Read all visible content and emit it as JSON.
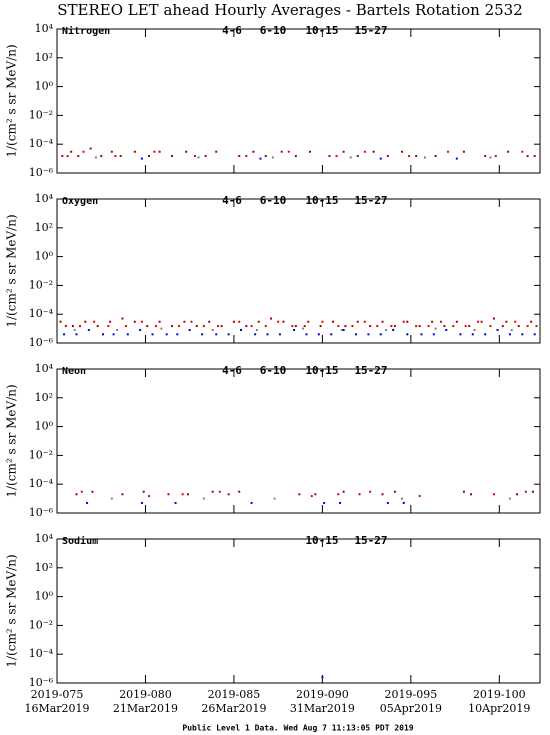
{
  "title": "STEREO LET ahead Hourly Averages - Bartels Rotation 2532",
  "footer": "Public Level 1 Data. Wed Aug  7 11:13:05 PDT 2019",
  "chart_data": [
    {
      "type": "scatter",
      "title": "Nitrogen",
      "y_label": "1/(cm² s sr MeV/n)",
      "log_y": true,
      "ylim": [
        1e-06,
        10000
      ],
      "yticks": [
        {
          "value": 10000,
          "label": "10⁴"
        },
        {
          "value": 100,
          "label": "10²"
        },
        {
          "value": 1,
          "label": "10⁰"
        },
        {
          "value": 0.01,
          "label": "10⁻²"
        },
        {
          "value": 0.0001,
          "label": "10⁻⁴"
        },
        {
          "value": 1e-06,
          "label": "10⁻⁶"
        }
      ],
      "series": [
        {
          "name": "4-6",
          "color": "#a00000",
          "x": [
            75.3,
            75.8,
            76.2,
            76.9,
            77.5,
            78.1,
            78.6,
            79.4,
            80.2,
            80.8,
            81.5,
            82.3,
            83.4,
            84.0,
            85.3,
            86.1,
            86.8,
            87.7,
            88.5,
            89.3,
            90.4,
            91.2,
            92.0,
            92.9,
            93.7,
            94.5,
            95.3,
            96.4,
            98.0,
            99.2,
            100.5,
            101.6,
            102.0
          ],
          "values": [
            1.5e-05,
            3e-05,
            1.5e-05,
            5e-05,
            1.5e-05,
            3e-05,
            1.5e-05,
            3e-05,
            1.5e-05,
            3e-05,
            1.5e-05,
            3e-05,
            1.5e-05,
            3e-05,
            1.5e-05,
            3e-05,
            1.5e-05,
            3e-05,
            1.5e-05,
            3e-05,
            1.5e-05,
            3e-05,
            1.5e-05,
            3e-05,
            1.5e-05,
            3e-05,
            1.5e-05,
            1.5e-05,
            3e-05,
            1.5e-05,
            3e-05,
            1.5e-05,
            1.5e-05
          ]
        },
        {
          "name": "6-10",
          "color": "#e00000",
          "x": [
            75.6,
            76.5,
            78.3,
            80.5,
            82.8,
            85.7,
            88.1,
            90.8,
            92.4,
            94.9,
            97.1,
            99.8,
            101.3
          ],
          "values": [
            1.5e-05,
            3e-05,
            1.5e-05,
            3e-05,
            1.5e-05,
            1.5e-05,
            3e-05,
            1.5e-05,
            3e-05,
            1.5e-05,
            3e-05,
            1.5e-05,
            3e-05
          ]
        },
        {
          "name": "10-15",
          "color": "#808080",
          "x": [
            77.2,
            83.0,
            87.2,
            91.6,
            95.8,
            99.5
          ],
          "values": [
            1.2e-05,
            1.2e-05,
            1.2e-05,
            1.2e-05,
            1.2e-05,
            1.2e-05
          ]
        },
        {
          "name": "15-27",
          "color": "#0000e0",
          "x": [
            79.8,
            86.5,
            93.3,
            97.6
          ],
          "values": [
            1e-05,
            1e-05,
            1e-05,
            1e-05
          ]
        }
      ]
    },
    {
      "type": "scatter",
      "title": "Oxygen",
      "y_label": "1/(cm² s sr MeV/n)",
      "log_y": true,
      "ylim": [
        1e-06,
        10000
      ],
      "yticks": [
        {
          "value": 10000,
          "label": "10⁴"
        },
        {
          "value": 100,
          "label": "10²"
        },
        {
          "value": 1,
          "label": "10⁰"
        },
        {
          "value": 0.01,
          "label": "10⁻²"
        },
        {
          "value": 0.0001,
          "label": "10⁻⁴"
        },
        {
          "value": 1e-06,
          "label": "10⁻⁶"
        }
      ],
      "series": [
        {
          "name": "4-6",
          "color": "#a00000",
          "x": [
            75.2,
            75.9,
            76.6,
            77.3,
            78.0,
            78.7,
            79.4,
            80.1,
            80.8,
            81.5,
            82.2,
            82.9,
            83.6,
            84.3,
            85.0,
            85.7,
            86.4,
            87.1,
            87.8,
            88.5,
            89.2,
            89.9,
            90.6,
            91.3,
            92.0,
            92.7,
            93.4,
            94.1,
            94.8,
            95.5,
            96.2,
            96.9,
            97.6,
            98.3,
            99.0,
            99.7,
            100.4,
            101.1,
            101.8
          ],
          "values": [
            3e-05,
            1.5e-05,
            3e-05,
            1.5e-05,
            3e-05,
            5e-05,
            3e-05,
            1.5e-05,
            3e-05,
            1.5e-05,
            3e-05,
            1.5e-05,
            3e-05,
            1.5e-05,
            3e-05,
            1.5e-05,
            3e-05,
            5e-05,
            3e-05,
            1.5e-05,
            3e-05,
            1.5e-05,
            3e-05,
            1.5e-05,
            3e-05,
            1.5e-05,
            3e-05,
            1.5e-05,
            3e-05,
            1.5e-05,
            3e-05,
            1.5e-05,
            3e-05,
            1.5e-05,
            3e-05,
            5e-05,
            3e-05,
            1.5e-05,
            3e-05
          ]
        },
        {
          "name": "6-10",
          "color": "#e00000",
          "x": [
            75.5,
            76.3,
            77.1,
            77.9,
            78.9,
            79.8,
            80.6,
            81.9,
            82.6,
            83.3,
            84.1,
            85.3,
            86.0,
            86.8,
            87.5,
            88.3,
            89.0,
            90.0,
            90.9,
            91.7,
            92.4,
            93.1,
            93.9,
            94.6,
            95.3,
            96.0,
            96.7,
            97.4,
            98.1,
            98.8,
            99.5,
            100.2,
            100.9,
            101.6,
            102.1
          ],
          "values": [
            1.5e-05,
            1.5e-05,
            3e-05,
            1.5e-05,
            1.5e-05,
            3e-05,
            1.5e-05,
            1.5e-05,
            3e-05,
            1.5e-05,
            1.5e-05,
            3e-05,
            1.5e-05,
            1.5e-05,
            3e-05,
            1.5e-05,
            1.5e-05,
            3e-05,
            1.5e-05,
            1.5e-05,
            3e-05,
            1.5e-05,
            1.5e-05,
            3e-05,
            1.5e-05,
            1.5e-05,
            3e-05,
            1.5e-05,
            1.5e-05,
            3e-05,
            1.5e-05,
            1.5e-05,
            3e-05,
            1.5e-05,
            1.5e-05
          ]
        },
        {
          "name": "10-15",
          "color": "#808080",
          "x": [
            76.0,
            78.4,
            80.9,
            83.8,
            86.3,
            88.9,
            91.1,
            93.6,
            96.4,
            98.6,
            100.7
          ],
          "values": [
            8e-06,
            8e-06,
            1e-05,
            8e-06,
            8e-06,
            1e-05,
            8e-06,
            8e-06,
            1e-05,
            8e-06,
            8e-06
          ]
        },
        {
          "name": "15-27",
          "color": "#0000e0",
          "x": [
            75.4,
            76.1,
            76.8,
            77.6,
            78.2,
            79.0,
            79.7,
            80.4,
            81.2,
            81.8,
            82.5,
            83.2,
            84.0,
            84.7,
            85.4,
            86.2,
            86.9,
            87.6,
            88.4,
            89.1,
            89.8,
            90.5,
            91.2,
            91.9,
            92.6,
            93.3,
            94.0,
            94.8,
            95.6,
            96.3,
            97.0,
            97.8,
            98.5,
            99.2,
            99.9,
            100.6,
            101.3,
            102.0
          ],
          "values": [
            4e-06,
            4e-06,
            8e-06,
            4e-06,
            4e-06,
            4e-06,
            8e-06,
            4e-06,
            4e-06,
            4e-06,
            8e-06,
            4e-06,
            4e-06,
            4e-06,
            8e-06,
            4e-06,
            4e-06,
            4e-06,
            8e-06,
            4e-06,
            4e-06,
            4e-06,
            8e-06,
            4e-06,
            4e-06,
            4e-06,
            8e-06,
            4e-06,
            4e-06,
            4e-06,
            8e-06,
            4e-06,
            4e-06,
            4e-06,
            8e-06,
            4e-06,
            4e-06,
            4e-06
          ]
        }
      ]
    },
    {
      "type": "scatter",
      "title": "Neon",
      "y_label": "1/(cm² s sr MeV/n)",
      "log_y": true,
      "ylim": [
        1e-06,
        10000
      ],
      "yticks": [
        {
          "value": 10000,
          "label": "10⁴"
        },
        {
          "value": 100,
          "label": "10²"
        },
        {
          "value": 1,
          "label": "10⁰"
        },
        {
          "value": 0.01,
          "label": "10⁻²"
        },
        {
          "value": 0.0001,
          "label": "10⁻⁴"
        },
        {
          "value": 1e-06,
          "label": "10⁻⁶"
        }
      ],
      "series": [
        {
          "name": "4-6",
          "color": "#a00000",
          "x": [
            76.1,
            77.0,
            78.7,
            79.9,
            81.3,
            82.4,
            83.8,
            84.7,
            85.3,
            88.7,
            89.6,
            91.2,
            92.1,
            93.4,
            94.1,
            98.0,
            98.4,
            101.0,
            101.9
          ],
          "values": [
            2e-05,
            3e-05,
            2e-05,
            3e-05,
            2e-05,
            2e-05,
            3e-05,
            2e-05,
            3e-05,
            2e-05,
            2e-05,
            3e-05,
            2e-05,
            2e-05,
            3e-05,
            3e-05,
            2e-05,
            2e-05,
            3e-05
          ]
        },
        {
          "name": "6-10",
          "color": "#e00000",
          "x": [
            76.4,
            80.2,
            82.1,
            84.2,
            89.4,
            90.9,
            92.7,
            95.5,
            99.7,
            101.5
          ],
          "values": [
            3e-05,
            1.5e-05,
            2e-05,
            3e-05,
            1.5e-05,
            2e-05,
            3e-05,
            1.5e-05,
            2e-05,
            3e-05
          ]
        },
        {
          "name": "10-15",
          "color": "#808080",
          "x": [
            78.1,
            83.3,
            87.3,
            94.5,
            100.6
          ],
          "values": [
            1e-05,
            1e-05,
            1e-05,
            1e-05,
            1e-05
          ]
        },
        {
          "name": "15-27",
          "color": "#0000e0",
          "x": [
            76.7,
            79.8,
            81.7,
            86.0,
            90.1,
            91.0,
            93.7,
            94.6
          ],
          "values": [
            5e-06,
            5e-06,
            5e-06,
            5e-06,
            5e-06,
            5e-06,
            5e-06,
            5e-06
          ]
        }
      ]
    },
    {
      "type": "scatter",
      "title": "Sodium",
      "y_label": "1/(cm² s sr MeV/n)",
      "log_y": true,
      "ylim": [
        1e-06,
        10000
      ],
      "yticks": [
        {
          "value": 10000,
          "label": "10⁴"
        },
        {
          "value": 100,
          "label": "10²"
        },
        {
          "value": 1,
          "label": "10⁰"
        },
        {
          "value": 0.01,
          "label": "10⁻²"
        },
        {
          "value": 0.0001,
          "label": "10⁻⁴"
        },
        {
          "value": 1e-06,
          "label": "10⁻⁶"
        }
      ],
      "xlim": [
        75,
        102.3
      ],
      "xticks": [
        {
          "value": 75,
          "label": "2019-075"
        },
        {
          "value": 80,
          "label": "2019-080"
        },
        {
          "value": 85,
          "label": "2019-085"
        },
        {
          "value": 90,
          "label": "2019-090"
        },
        {
          "value": 95,
          "label": "2019-095"
        },
        {
          "value": 100,
          "label": "2019-100"
        }
      ],
      "xtick_dates": [
        "16Mar2019",
        "21Mar2019",
        "26Mar2019",
        "31Mar2019",
        "05Apr2019",
        "10Apr2019"
      ],
      "series": [
        {
          "name": "10-15",
          "color": "#808080",
          "x": [],
          "values": []
        },
        {
          "name": "15-27",
          "color": "#0000e0",
          "x": [
            90.0
          ],
          "values": [
            2.5e-06
          ]
        }
      ]
    }
  ]
}
